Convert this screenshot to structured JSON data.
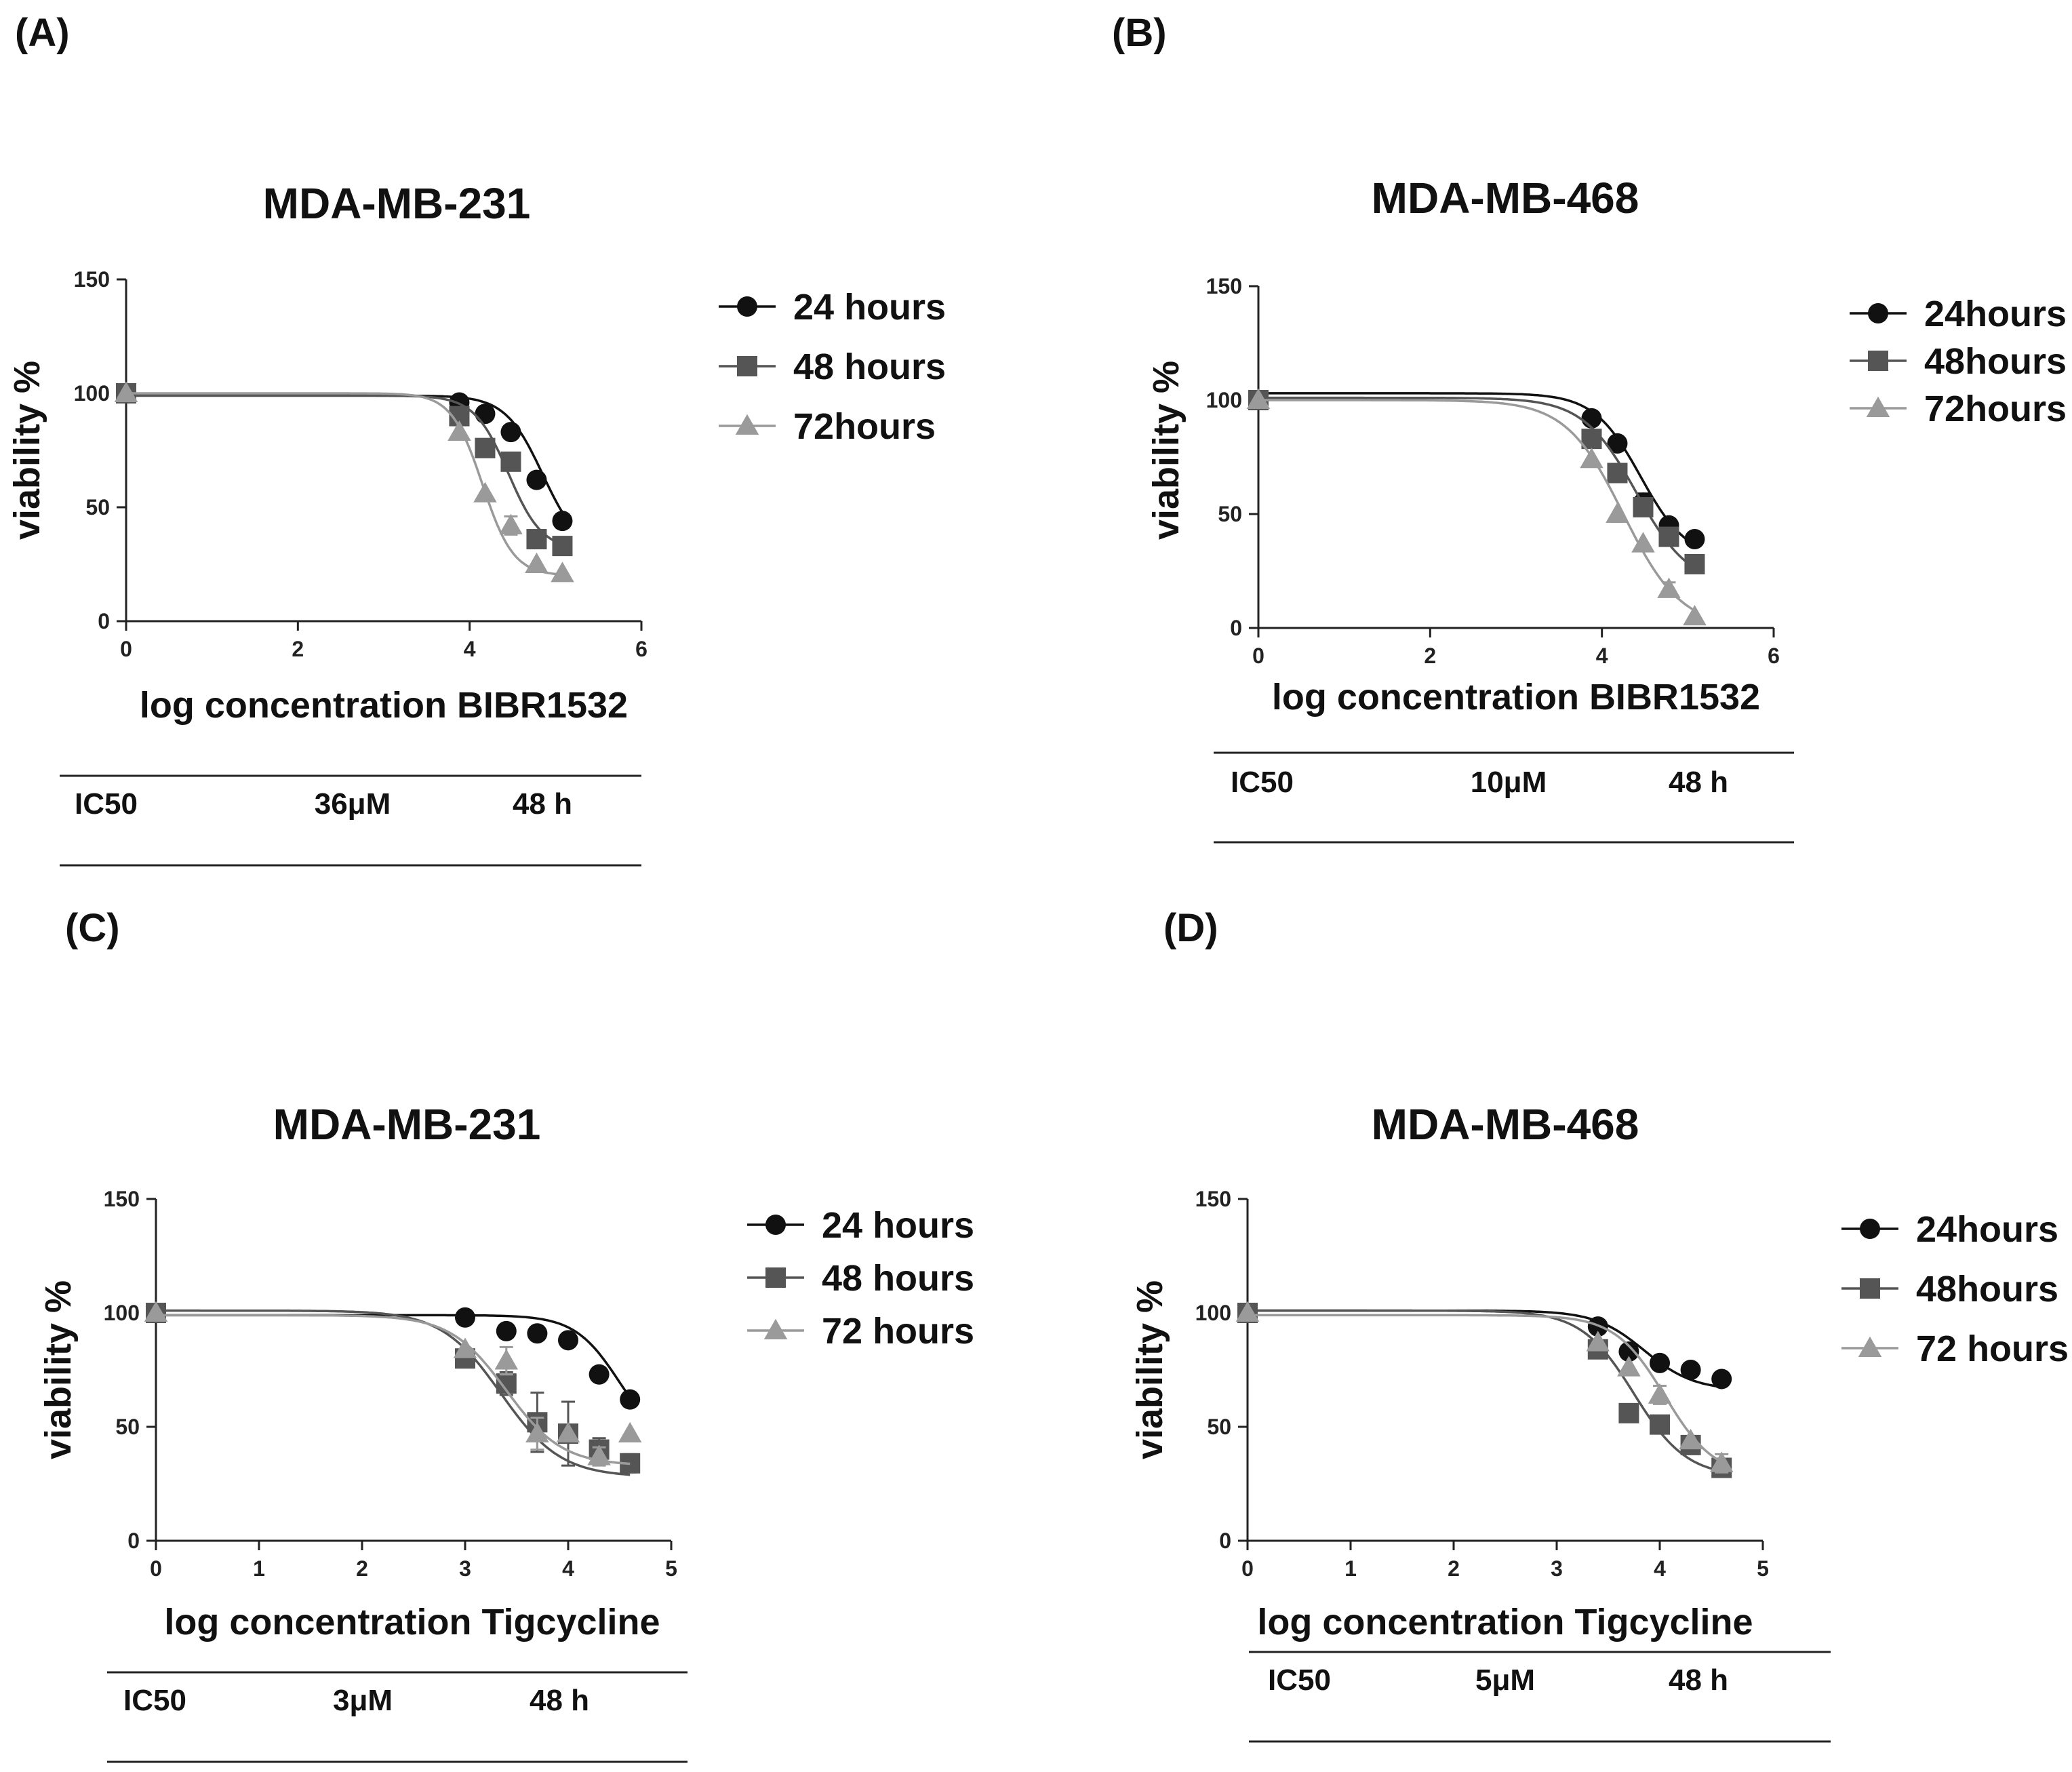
{
  "chart_data": [
    {
      "panel": "(A)",
      "type": "scatter",
      "title": "MDA-MB-231",
      "xlabel": "log concentration BIBR1532",
      "ylabel": "viability %",
      "xlim": [
        0,
        6
      ],
      "ylim": [
        0,
        150
      ],
      "xticks": [
        0,
        2,
        4,
        6
      ],
      "yticks": [
        0,
        50,
        100,
        150
      ],
      "legend": "right",
      "series": [
        {
          "name": "24 hours",
          "marker": "circle",
          "color": "#111111",
          "x": [
            0,
            3.88,
            4.18,
            4.48,
            4.78,
            5.08
          ],
          "y": [
            100,
            96,
            91,
            83,
            62,
            44
          ],
          "err": [
            0,
            0,
            0,
            0,
            0,
            3
          ],
          "fit": {
            "top": 99,
            "bottom": 30,
            "ec50": 4.85,
            "hill": 2.0
          }
        },
        {
          "name": "48 hours",
          "marker": "square",
          "color": "#555555",
          "x": [
            0,
            3.88,
            4.18,
            4.48,
            4.78,
            5.08
          ],
          "y": [
            100,
            90,
            76,
            70,
            36,
            33
          ],
          "err": [
            0,
            0,
            0,
            0,
            0,
            0
          ],
          "fit": {
            "top": 99,
            "bottom": 31,
            "ec50": 4.45,
            "hill": 2.2
          }
        },
        {
          "name": "72hours",
          "marker": "triangle",
          "color": "#9a9a9a",
          "x": [
            0,
            3.88,
            4.18,
            4.48,
            4.78,
            5.08
          ],
          "y": [
            100,
            83,
            56,
            42,
            25,
            21
          ],
          "err": [
            0,
            0,
            0,
            4,
            0,
            0
          ],
          "fit": {
            "top": 100,
            "bottom": 20,
            "ec50": 4.15,
            "hill": 2.4
          }
        }
      ],
      "ic50": {
        "label": "IC50",
        "value": "36μM",
        "time": "48 h"
      }
    },
    {
      "panel": "(B)",
      "type": "scatter",
      "title": "MDA-MB-468",
      "xlabel": "log concentration BIBR1532",
      "ylabel": "viability %",
      "xlim": [
        0,
        6
      ],
      "ylim": [
        0,
        150
      ],
      "xticks": [
        0,
        2,
        4,
        6
      ],
      "yticks": [
        0,
        50,
        100,
        150
      ],
      "legend": "right",
      "series": [
        {
          "name": "24hours",
          "marker": "circle",
          "color": "#111111",
          "x": [
            0,
            3.88,
            4.18,
            4.48,
            4.78,
            5.08
          ],
          "y": [
            100,
            92,
            81,
            55,
            45,
            39
          ],
          "err": [
            0,
            0,
            0,
            4,
            0,
            0
          ],
          "fit": {
            "top": 103,
            "bottom": 30,
            "ec50": 4.45,
            "hill": 1.6
          }
        },
        {
          "name": "48hours",
          "marker": "square",
          "color": "#555555",
          "x": [
            0,
            3.88,
            4.18,
            4.48,
            4.78,
            5.08
          ],
          "y": [
            100,
            83,
            68,
            53,
            40,
            28
          ],
          "err": [
            0,
            0,
            0,
            0,
            0,
            0
          ],
          "fit": {
            "top": 101,
            "bottom": 18,
            "ec50": 4.4,
            "hill": 1.4
          }
        },
        {
          "name": "72hours",
          "marker": "triangle",
          "color": "#9a9a9a",
          "x": [
            0,
            3.88,
            4.18,
            4.48,
            4.78,
            5.08
          ],
          "y": [
            100,
            74,
            50,
            37,
            17,
            5
          ],
          "err": [
            0,
            0,
            0,
            0,
            3,
            0
          ],
          "fit": {
            "top": 100,
            "bottom": 0,
            "ec50": 4.25,
            "hill": 1.3
          }
        }
      ],
      "ic50": {
        "label": "IC50",
        "value": "10μM",
        "time": "48 h"
      }
    },
    {
      "panel": "(C)",
      "type": "scatter",
      "title": "MDA-MB-231",
      "xlabel": "log concentration Tigcycline",
      "ylabel": "viability %",
      "xlim": [
        0,
        5
      ],
      "ylim": [
        0,
        150
      ],
      "xticks": [
        0,
        1,
        2,
        3,
        4,
        5
      ],
      "yticks": [
        0,
        50,
        100,
        150
      ],
      "legend": "right",
      "series": [
        {
          "name": "24 hours",
          "marker": "circle",
          "color": "#111111",
          "x": [
            0,
            3.0,
            3.4,
            3.7,
            4.0,
            4.3,
            4.6
          ],
          "y": [
            100,
            98,
            92,
            91,
            88,
            73,
            62
          ],
          "err": [
            0,
            0,
            0,
            0,
            0,
            0,
            3
          ],
          "fit": {
            "top": 99,
            "bottom": 40,
            "ec50": 4.5,
            "hill": 2.0
          }
        },
        {
          "name": "48 hours",
          "marker": "square",
          "color": "#555555",
          "x": [
            0,
            3.0,
            3.4,
            3.7,
            4.0,
            4.3,
            4.6
          ],
          "y": [
            100,
            80,
            69,
            52,
            47,
            40,
            34
          ],
          "err": [
            0,
            0,
            5,
            13,
            14,
            5,
            4
          ],
          "fit": {
            "top": 101,
            "bottom": 28,
            "ec50": 3.35,
            "hill": 1.5
          }
        },
        {
          "name": "72 hours",
          "marker": "triangle",
          "color": "#9a9a9a",
          "x": [
            0,
            3.0,
            3.4,
            3.7,
            4.0,
            4.3,
            4.6
          ],
          "y": [
            100,
            84,
            79,
            47,
            47,
            37,
            47
          ],
          "err": [
            0,
            0,
            6,
            7,
            0,
            4,
            0
          ],
          "fit": {
            "top": 99,
            "bottom": 33,
            "ec50": 3.4,
            "hill": 1.6
          }
        }
      ],
      "ic50": {
        "label": "IC50",
        "value": "3μM",
        "time": "48 h"
      }
    },
    {
      "panel": "(D)",
      "type": "scatter",
      "title": "MDA-MB-468",
      "xlabel": "log concentration Tigcycline",
      "ylabel": "viability %",
      "xlim": [
        0,
        5
      ],
      "ylim": [
        0,
        150
      ],
      "xticks": [
        0,
        1,
        2,
        3,
        4,
        5
      ],
      "yticks": [
        0,
        50,
        100,
        150
      ],
      "legend": "right",
      "series": [
        {
          "name": "24hours",
          "marker": "circle",
          "color": "#111111",
          "x": [
            0,
            3.4,
            3.7,
            4.0,
            4.3,
            4.6
          ],
          "y": [
            100,
            94,
            83,
            78,
            75,
            71
          ],
          "err": [
            0,
            0,
            0,
            0,
            0,
            0
          ],
          "fit": {
            "top": 101,
            "bottom": 66,
            "ec50": 3.85,
            "hill": 1.8
          }
        },
        {
          "name": "48hours",
          "marker": "square",
          "color": "#555555",
          "x": [
            0,
            3.4,
            3.7,
            4.0,
            4.3,
            4.6
          ],
          "y": [
            100,
            84,
            56,
            51,
            42,
            32
          ],
          "err": [
            0,
            0,
            0,
            0,
            3,
            3
          ],
          "fit": {
            "top": 101,
            "bottom": 28,
            "ec50": 3.75,
            "hill": 1.7
          }
        },
        {
          "name": "72 hours",
          "marker": "triangle",
          "color": "#9a9a9a",
          "x": [
            0,
            3.4,
            3.7,
            4.0,
            4.3,
            4.6
          ],
          "y": [
            100,
            87,
            76,
            64,
            44,
            34
          ],
          "err": [
            0,
            0,
            0,
            4,
            0,
            4
          ],
          "fit": {
            "top": 99,
            "bottom": 28,
            "ec50": 4.05,
            "hill": 1.8
          }
        }
      ],
      "ic50": {
        "label": "IC50",
        "value": "5μM",
        "time": "48 h"
      }
    }
  ]
}
